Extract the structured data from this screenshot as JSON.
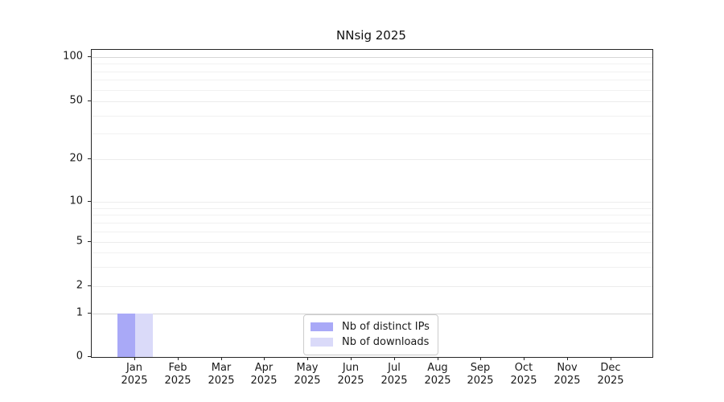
{
  "chart_data": {
    "type": "bar",
    "title": "NNsig 2025",
    "categories": [
      "Jan",
      "Feb",
      "Mar",
      "Apr",
      "May",
      "Jun",
      "Jul",
      "Aug",
      "Sep",
      "Oct",
      "Nov",
      "Dec"
    ],
    "category_year": "2025",
    "series": [
      {
        "name": "Nb of distinct IPs",
        "color": "#a9a9f7",
        "values": [
          1,
          0,
          0,
          0,
          0,
          0,
          0,
          0,
          0,
          0,
          0,
          0
        ]
      },
      {
        "name": "Nb of downloads",
        "color": "#dadaf9",
        "values": [
          1,
          0,
          0,
          0,
          0,
          0,
          0,
          0,
          0,
          0,
          0,
          0
        ]
      }
    ],
    "yticks": [
      0,
      1,
      2,
      5,
      10,
      20,
      50,
      100
    ],
    "yscale": "symlog",
    "ylim": [
      0,
      110
    ],
    "xlabel": "",
    "ylabel": "",
    "grid": true,
    "legend_position": "lower-center-inside"
  }
}
